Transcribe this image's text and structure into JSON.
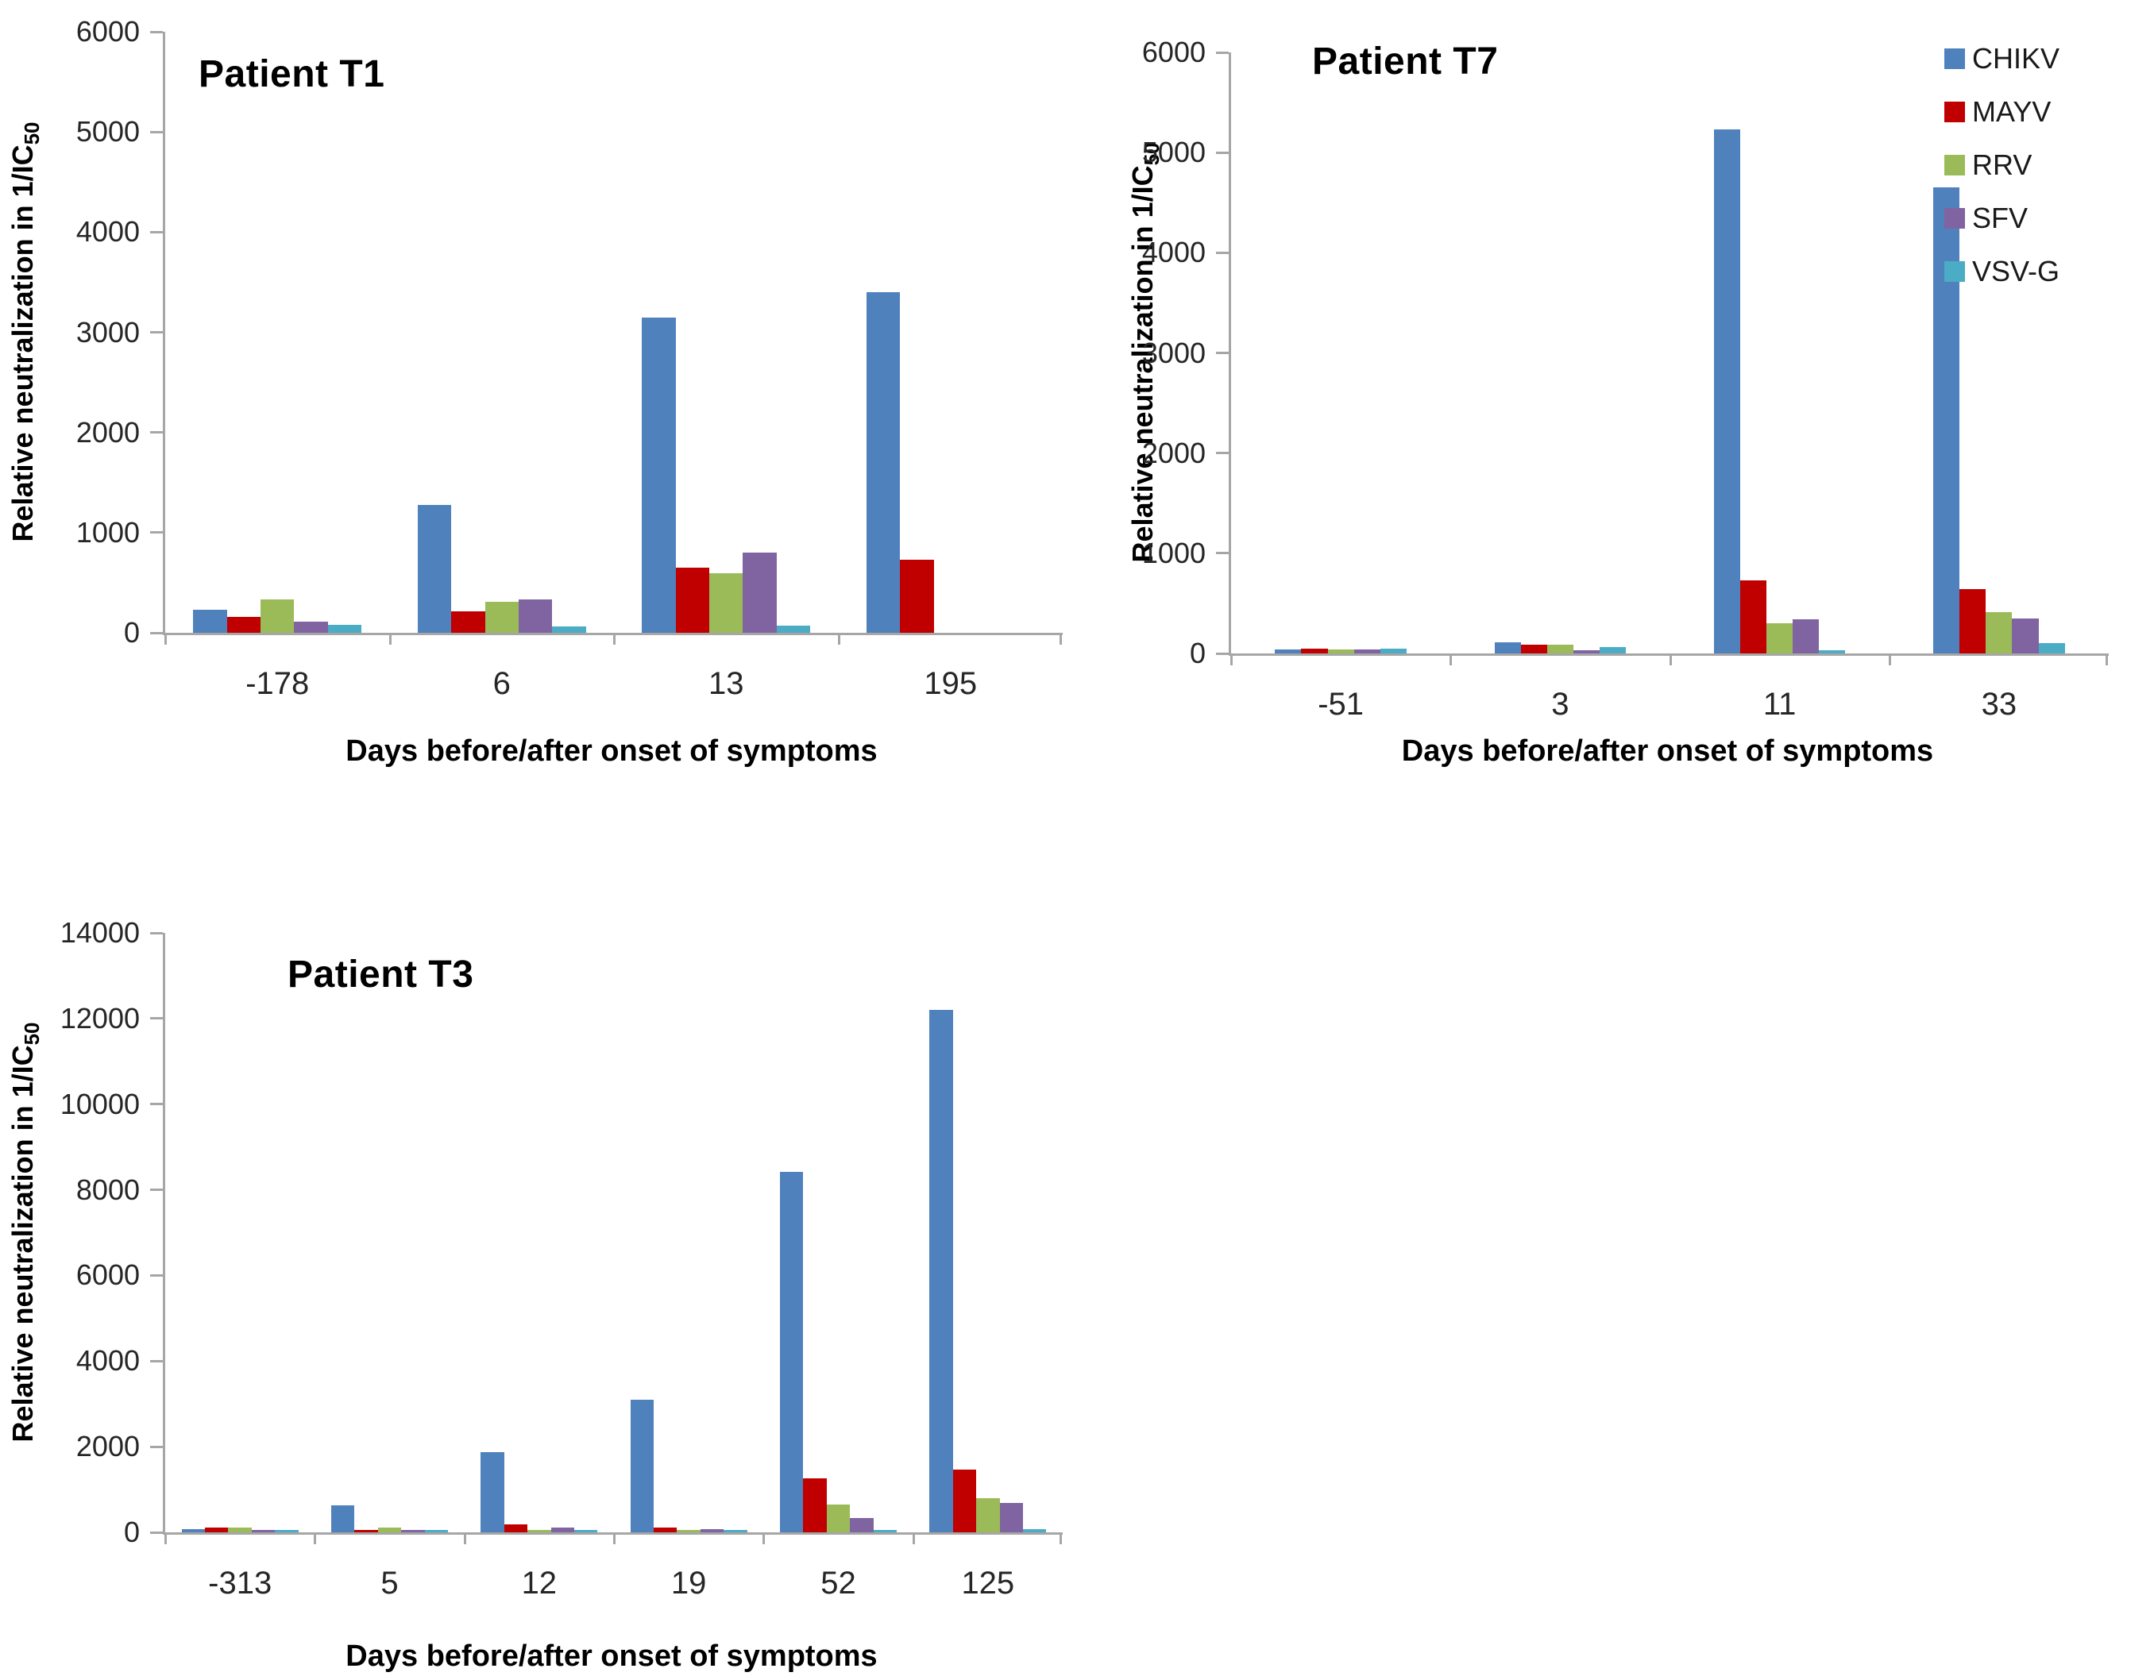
{
  "figure": {
    "background": "#ffffff",
    "description_note": "Three clustered bar charts of relative neutralization over time for three patients"
  },
  "labels": {
    "y_axis_main": "Relative neutralization in 1/IC",
    "y_axis_sub": "50",
    "x_axis": "Days before/after onset of symptoms"
  },
  "legend": {
    "position": "top-right",
    "items": [
      {
        "label": "CHIKV",
        "color": "#4F81BD"
      },
      {
        "label": "MAYV",
        "color": "#C00000"
      },
      {
        "label": "RRV",
        "color": "#9BBB59"
      },
      {
        "label": "SFV",
        "color": "#8064A2"
      },
      {
        "label": "VSV-G",
        "color": "#4BACC6"
      }
    ]
  },
  "axis_style": {
    "axis_line_color": "#a6a6a6",
    "tick_label_color": "#262626",
    "grid": false
  },
  "chart_data": [
    {
      "type": "bar",
      "title": "Patient T1",
      "xlabel": "Days before/after onset of symptoms",
      "ylabel": "Relative neutralization in 1/IC50",
      "ylim": [
        0,
        6000
      ],
      "ytick_step": 1000,
      "grid": false,
      "legend_position": "none",
      "categories": [
        "-178",
        "6",
        "13",
        "195"
      ],
      "series": [
        {
          "name": "CHIKV",
          "color": "#4F81BD",
          "values": [
            230,
            1280,
            3150,
            3400
          ]
        },
        {
          "name": "MAYV",
          "color": "#C00000",
          "values": [
            160,
            215,
            650,
            730
          ]
        },
        {
          "name": "RRV",
          "color": "#9BBB59",
          "values": [
            330,
            310,
            595,
            0
          ]
        },
        {
          "name": "SFV",
          "color": "#8064A2",
          "values": [
            110,
            330,
            800,
            0
          ]
        },
        {
          "name": "VSV-G",
          "color": "#4BACC6",
          "values": [
            80,
            60,
            70,
            0
          ]
        }
      ]
    },
    {
      "type": "bar",
      "title": "Patient T7",
      "xlabel": "Days before/after onset of symptoms",
      "ylabel": "Relative neutralization in 1/IC50",
      "ylim": [
        0,
        6000
      ],
      "ytick_step": 1000,
      "grid": false,
      "legend_position": "top-right",
      "categories": [
        "-51",
        "3",
        "11",
        "33"
      ],
      "series": [
        {
          "name": "CHIKV",
          "color": "#4F81BD",
          "values": [
            40,
            115,
            5230,
            4650
          ]
        },
        {
          "name": "MAYV",
          "color": "#C00000",
          "values": [
            50,
            85,
            730,
            640
          ]
        },
        {
          "name": "RRV",
          "color": "#9BBB59",
          "values": [
            40,
            85,
            300,
            410
          ]
        },
        {
          "name": "SFV",
          "color": "#8064A2",
          "values": [
            40,
            35,
            340,
            350
          ]
        },
        {
          "name": "VSV-G",
          "color": "#4BACC6",
          "values": [
            45,
            65,
            30,
            100
          ]
        }
      ]
    },
    {
      "type": "bar",
      "title": "Patient T3",
      "xlabel": "Days before/after onset of symptoms",
      "ylabel": "Relative neutralization in 1/IC50",
      "ylim": [
        0,
        14000
      ],
      "ytick_step": 2000,
      "grid": false,
      "legend_position": "none",
      "categories": [
        "-313",
        "5",
        "12",
        "19",
        "52",
        "125"
      ],
      "series": [
        {
          "name": "CHIKV",
          "color": "#4F81BD",
          "values": [
            75,
            630,
            1870,
            3100,
            8420,
            12200
          ]
        },
        {
          "name": "MAYV",
          "color": "#C00000",
          "values": [
            120,
            65,
            185,
            120,
            1260,
            1460
          ]
        },
        {
          "name": "RRV",
          "color": "#9BBB59",
          "values": [
            110,
            120,
            55,
            60,
            650,
            795
          ]
        },
        {
          "name": "SFV",
          "color": "#8064A2",
          "values": [
            60,
            65,
            110,
            70,
            340,
            690
          ]
        },
        {
          "name": "VSV-G",
          "color": "#4BACC6",
          "values": [
            60,
            65,
            65,
            65,
            60,
            80
          ]
        }
      ]
    }
  ]
}
